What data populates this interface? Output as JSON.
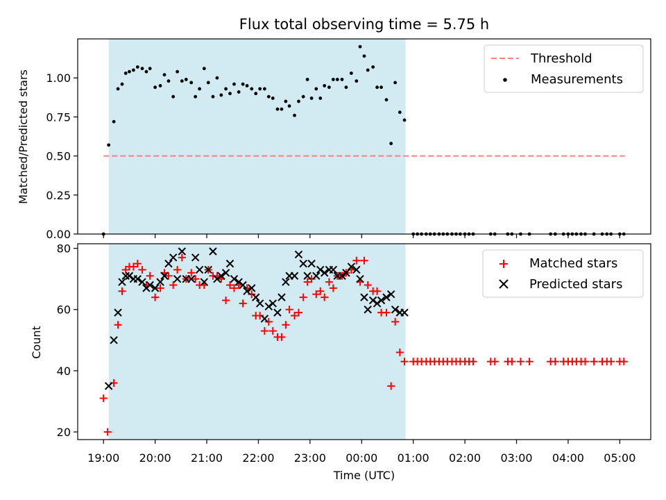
{
  "chart_data": {
    "title": "Flux total observing time = 5.75 h",
    "x_tick_labels": [
      "19:00",
      "20:00",
      "21:00",
      "22:00",
      "23:00",
      "00:00",
      "01:00",
      "02:00",
      "03:00",
      "04:00",
      "05:00"
    ],
    "xlabel": "Time (UTC)",
    "colors": {
      "highlight": "#add8e6",
      "threshold": "#ff7f7f",
      "measurements": "#000000",
      "matched": "#ff0000",
      "predicted": "#000000"
    },
    "x_domain_hours": [
      -0.5,
      10.6
    ],
    "shaded_interval_hours": [
      0.1,
      5.85
    ],
    "top": {
      "type": "scatter",
      "ylabel": "Matched/Predicted stars",
      "ylim": [
        0,
        1.25
      ],
      "y_ticks": [
        0.0,
        0.25,
        0.5,
        0.75,
        1.0
      ],
      "y_tick_labels": [
        "0.00",
        "0.25",
        "0.50",
        "0.75",
        "1.00"
      ],
      "threshold": {
        "label": "Threshold",
        "value": 0.5,
        "x_range": [
          0.0,
          10.1
        ]
      },
      "measurements_label": "Measurements",
      "measurements": [
        [
          0.0,
          0.0
        ],
        [
          0.1,
          0.57
        ],
        [
          0.2,
          0.72
        ],
        [
          0.28,
          0.93
        ],
        [
          0.36,
          0.96
        ],
        [
          0.43,
          1.03
        ],
        [
          0.5,
          1.04
        ],
        [
          0.58,
          1.05
        ],
        [
          0.66,
          1.07
        ],
        [
          0.75,
          1.06
        ],
        [
          0.83,
          1.04
        ],
        [
          0.9,
          1.06
        ],
        [
          1.0,
          0.94
        ],
        [
          1.1,
          0.95
        ],
        [
          1.18,
          1.02
        ],
        [
          1.26,
          0.98
        ],
        [
          1.35,
          0.88
        ],
        [
          1.43,
          1.04
        ],
        [
          1.52,
          0.98
        ],
        [
          1.6,
          0.99
        ],
        [
          1.7,
          0.97
        ],
        [
          1.78,
          0.88
        ],
        [
          1.86,
          0.93
        ],
        [
          1.95,
          1.06
        ],
        [
          2.03,
          0.97
        ],
        [
          2.12,
          0.88
        ],
        [
          2.2,
          1.0
        ],
        [
          2.28,
          0.89
        ],
        [
          2.37,
          0.93
        ],
        [
          2.45,
          0.9
        ],
        [
          2.53,
          0.96
        ],
        [
          2.62,
          0.91
        ],
        [
          2.7,
          0.96
        ],
        [
          2.78,
          0.95
        ],
        [
          2.87,
          0.93
        ],
        [
          2.95,
          0.9
        ],
        [
          3.03,
          0.93
        ],
        [
          3.12,
          0.93
        ],
        [
          3.2,
          0.88
        ],
        [
          3.28,
          0.87
        ],
        [
          3.37,
          0.8
        ],
        [
          3.45,
          0.8
        ],
        [
          3.53,
          0.85
        ],
        [
          3.6,
          0.82
        ],
        [
          3.7,
          0.76
        ],
        [
          3.78,
          0.85
        ],
        [
          3.87,
          0.88
        ],
        [
          3.95,
          0.99
        ],
        [
          4.03,
          0.87
        ],
        [
          4.12,
          0.93
        ],
        [
          4.2,
          0.87
        ],
        [
          4.28,
          0.95
        ],
        [
          4.37,
          0.94
        ],
        [
          4.45,
          0.99
        ],
        [
          4.53,
          0.99
        ],
        [
          4.62,
          0.99
        ],
        [
          4.7,
          0.94
        ],
        [
          4.8,
          1.03
        ],
        [
          4.9,
          0.98
        ],
        [
          4.97,
          1.2
        ],
        [
          5.05,
          1.14
        ],
        [
          5.12,
          1.05
        ],
        [
          5.22,
          1.07
        ],
        [
          5.3,
          0.94
        ],
        [
          5.38,
          0.94
        ],
        [
          5.48,
          0.86
        ],
        [
          5.57,
          0.58
        ],
        [
          5.65,
          0.97
        ],
        [
          5.74,
          0.78
        ],
        [
          5.83,
          0.73
        ],
        [
          6.0,
          0.0
        ],
        [
          6.08,
          0.0
        ],
        [
          6.16,
          0.0
        ],
        [
          6.25,
          0.0
        ],
        [
          6.33,
          0.0
        ],
        [
          6.41,
          0.0
        ],
        [
          6.5,
          0.0
        ],
        [
          6.58,
          0.0
        ],
        [
          6.66,
          0.0
        ],
        [
          6.75,
          0.0
        ],
        [
          6.83,
          0.0
        ],
        [
          6.91,
          0.0
        ],
        [
          7.0,
          0.0
        ],
        [
          7.08,
          0.0
        ],
        [
          7.16,
          0.0
        ],
        [
          7.5,
          0.0
        ],
        [
          7.58,
          0.0
        ],
        [
          7.83,
          0.0
        ],
        [
          7.91,
          0.0
        ],
        [
          8.08,
          0.0
        ],
        [
          8.25,
          0.0
        ],
        [
          8.66,
          0.0
        ],
        [
          8.75,
          0.0
        ],
        [
          8.91,
          0.0
        ],
        [
          9.0,
          0.0
        ],
        [
          9.08,
          0.0
        ],
        [
          9.16,
          0.0
        ],
        [
          9.25,
          0.0
        ],
        [
          9.33,
          0.0
        ],
        [
          9.5,
          0.0
        ],
        [
          9.66,
          0.0
        ],
        [
          9.75,
          0.0
        ],
        [
          9.83,
          0.0
        ],
        [
          10.0,
          0.0
        ],
        [
          10.08,
          0.0
        ]
      ]
    },
    "bottom": {
      "type": "scatter",
      "ylabel": "Count",
      "ylim": [
        17.5,
        81.5
      ],
      "y_ticks": [
        20,
        40,
        60,
        80
      ],
      "y_tick_labels": [
        "20",
        "40",
        "60",
        "80"
      ],
      "matched_label": "Matched stars",
      "predicted_label": "Predicted stars",
      "matched": [
        [
          0.0,
          31
        ],
        [
          0.08,
          20
        ],
        [
          0.2,
          36
        ],
        [
          0.28,
          55
        ],
        [
          0.36,
          66
        ],
        [
          0.43,
          73
        ],
        [
          0.5,
          74
        ],
        [
          0.58,
          74
        ],
        [
          0.66,
          75
        ],
        [
          0.75,
          73
        ],
        [
          0.83,
          68
        ],
        [
          0.9,
          71
        ],
        [
          1.0,
          64
        ],
        [
          1.1,
          67
        ],
        [
          1.18,
          72
        ],
        [
          1.26,
          71
        ],
        [
          1.35,
          68
        ],
        [
          1.43,
          73
        ],
        [
          1.52,
          77
        ],
        [
          1.6,
          70
        ],
        [
          1.7,
          72
        ],
        [
          1.78,
          70
        ],
        [
          1.86,
          68
        ],
        [
          1.95,
          68
        ],
        [
          2.03,
          73
        ],
        [
          2.12,
          71
        ],
        [
          2.2,
          71
        ],
        [
          2.28,
          70
        ],
        [
          2.37,
          63
        ],
        [
          2.45,
          68
        ],
        [
          2.53,
          67
        ],
        [
          2.62,
          68
        ],
        [
          2.7,
          62
        ],
        [
          2.78,
          67
        ],
        [
          2.87,
          65
        ],
        [
          2.95,
          58
        ],
        [
          3.03,
          58
        ],
        [
          3.12,
          53
        ],
        [
          3.2,
          56
        ],
        [
          3.28,
          53
        ],
        [
          3.37,
          51
        ],
        [
          3.45,
          51
        ],
        [
          3.53,
          55
        ],
        [
          3.6,
          60
        ],
        [
          3.7,
          58
        ],
        [
          3.78,
          59
        ],
        [
          3.87,
          64
        ],
        [
          3.95,
          69
        ],
        [
          4.03,
          70
        ],
        [
          4.12,
          65
        ],
        [
          4.2,
          66
        ],
        [
          4.28,
          64
        ],
        [
          4.37,
          69
        ],
        [
          4.45,
          67
        ],
        [
          4.53,
          71
        ],
        [
          4.62,
          71
        ],
        [
          4.7,
          72
        ],
        [
          4.8,
          73
        ],
        [
          4.9,
          76
        ],
        [
          4.97,
          69
        ],
        [
          5.05,
          76
        ],
        [
          5.12,
          68
        ],
        [
          5.22,
          66
        ],
        [
          5.3,
          66
        ],
        [
          5.38,
          59
        ],
        [
          5.48,
          59
        ],
        [
          5.57,
          35
        ],
        [
          5.65,
          56
        ],
        [
          5.74,
          46
        ],
        [
          5.83,
          43
        ],
        [
          6.0,
          43
        ],
        [
          6.08,
          43
        ],
        [
          6.16,
          43
        ],
        [
          6.25,
          43
        ],
        [
          6.33,
          43
        ],
        [
          6.41,
          43
        ],
        [
          6.5,
          43
        ],
        [
          6.58,
          43
        ],
        [
          6.66,
          43
        ],
        [
          6.75,
          43
        ],
        [
          6.83,
          43
        ],
        [
          6.91,
          43
        ],
        [
          7.0,
          43
        ],
        [
          7.08,
          43
        ],
        [
          7.16,
          43
        ],
        [
          7.5,
          43
        ],
        [
          7.58,
          43
        ],
        [
          7.83,
          43
        ],
        [
          7.91,
          43
        ],
        [
          8.08,
          43
        ],
        [
          8.25,
          43
        ],
        [
          8.66,
          43
        ],
        [
          8.75,
          43
        ],
        [
          8.91,
          43
        ],
        [
          9.0,
          43
        ],
        [
          9.08,
          43
        ],
        [
          9.16,
          43
        ],
        [
          9.25,
          43
        ],
        [
          9.33,
          43
        ],
        [
          9.5,
          43
        ],
        [
          9.66,
          43
        ],
        [
          9.75,
          43
        ],
        [
          9.83,
          43
        ],
        [
          10.0,
          43
        ],
        [
          10.08,
          43
        ]
      ],
      "predicted": [
        [
          0.1,
          35
        ],
        [
          0.2,
          50
        ],
        [
          0.28,
          59
        ],
        [
          0.36,
          69
        ],
        [
          0.43,
          71
        ],
        [
          0.5,
          71
        ],
        [
          0.58,
          70
        ],
        [
          0.66,
          70
        ],
        [
          0.75,
          69
        ],
        [
          0.83,
          67
        ],
        [
          0.9,
          68
        ],
        [
          1.0,
          67
        ],
        [
          1.1,
          69
        ],
        [
          1.18,
          71
        ],
        [
          1.26,
          75
        ],
        [
          1.35,
          77
        ],
        [
          1.43,
          70
        ],
        [
          1.52,
          79
        ],
        [
          1.6,
          70
        ],
        [
          1.7,
          70
        ],
        [
          1.78,
          77
        ],
        [
          1.86,
          73
        ],
        [
          1.95,
          69
        ],
        [
          2.03,
          73
        ],
        [
          2.12,
          79
        ],
        [
          2.2,
          70
        ],
        [
          2.28,
          71
        ],
        [
          2.37,
          72
        ],
        [
          2.45,
          75
        ],
        [
          2.53,
          70
        ],
        [
          2.62,
          69
        ],
        [
          2.7,
          68
        ],
        [
          2.78,
          66
        ],
        [
          2.87,
          67
        ],
        [
          2.95,
          64
        ],
        [
          3.03,
          62
        ],
        [
          3.12,
          57
        ],
        [
          3.2,
          61
        ],
        [
          3.28,
          62
        ],
        [
          3.37,
          59
        ],
        [
          3.45,
          64
        ],
        [
          3.53,
          69
        ],
        [
          3.6,
          71
        ],
        [
          3.7,
          71
        ],
        [
          3.78,
          78
        ],
        [
          3.87,
          75
        ],
        [
          3.95,
          71
        ],
        [
          4.03,
          75
        ],
        [
          4.12,
          71
        ],
        [
          4.2,
          73
        ],
        [
          4.28,
          72
        ],
        [
          4.37,
          73
        ],
        [
          4.45,
          73
        ],
        [
          4.53,
          71
        ],
        [
          4.62,
          71
        ],
        [
          4.7,
          72
        ],
        [
          4.8,
          74
        ],
        [
          4.9,
          73
        ],
        [
          4.97,
          70
        ],
        [
          5.05,
          64
        ],
        [
          5.12,
          60
        ],
        [
          5.22,
          63
        ],
        [
          5.3,
          62
        ],
        [
          5.38,
          63
        ],
        [
          5.48,
          64
        ],
        [
          5.57,
          65
        ],
        [
          5.65,
          60
        ],
        [
          5.74,
          59
        ],
        [
          5.83,
          59
        ]
      ]
    }
  }
}
